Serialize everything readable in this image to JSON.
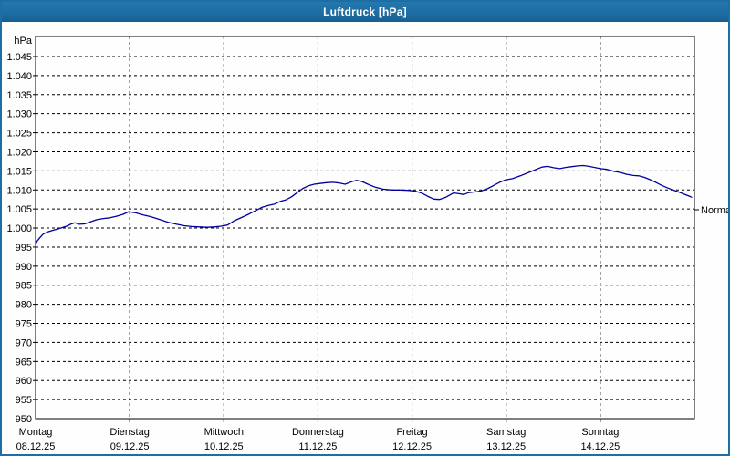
{
  "window": {
    "title": "Luftdruck [hPa]"
  },
  "colors": {
    "titlebar": "#1d6ea5",
    "window_border": "#1d6ea5",
    "background": "#fdfefd",
    "plot_border": "#000000",
    "gridline": "#000000",
    "curve": "#0000a0",
    "axis_text": "#000000",
    "normal_text": "#222222"
  },
  "chart_data": {
    "type": "line",
    "title": "Luftdruck [hPa]",
    "y_unit_label": "hPa",
    "ylim": [
      950,
      1050.3
    ],
    "x_range_days": [
      0,
      7
    ],
    "grid": "dashed",
    "legend": "none",
    "y_ticks": [
      {
        "value": 1045,
        "label": "1.045"
      },
      {
        "value": 1040,
        "label": "1.040"
      },
      {
        "value": 1035,
        "label": "1.035"
      },
      {
        "value": 1030,
        "label": "1.030"
      },
      {
        "value": 1025,
        "label": "1.025"
      },
      {
        "value": 1020,
        "label": "1.020"
      },
      {
        "value": 1015,
        "label": "1.015"
      },
      {
        "value": 1010,
        "label": "1.010"
      },
      {
        "value": 1005,
        "label": "1.005"
      },
      {
        "value": 1000,
        "label": "1.000"
      },
      {
        "value": 995,
        "label": "995"
      },
      {
        "value": 990,
        "label": "990"
      },
      {
        "value": 985,
        "label": "985"
      },
      {
        "value": 980,
        "label": "980"
      },
      {
        "value": 975,
        "label": "975"
      },
      {
        "value": 970,
        "label": "970"
      },
      {
        "value": 965,
        "label": "965"
      },
      {
        "value": 960,
        "label": "960"
      },
      {
        "value": 955,
        "label": "955"
      },
      {
        "value": 950,
        "label": "950"
      }
    ],
    "x_days": [
      {
        "name": "Montag",
        "date": "08.12.25"
      },
      {
        "name": "Dienstag",
        "date": "09.12.25"
      },
      {
        "name": "Mittwoch",
        "date": "10.12.25"
      },
      {
        "name": "Donnerstag",
        "date": "11.12.25"
      },
      {
        "name": "Freitag",
        "date": "12.12.25"
      },
      {
        "name": "Samstag",
        "date": "13.12.25"
      },
      {
        "name": "Sonntag",
        "date": "14.12.25"
      }
    ],
    "annotation": {
      "label": "Normal",
      "value": 1004.8
    },
    "series": [
      {
        "name": "Luftdruck",
        "color": "#0000a0",
        "points": [
          [
            0.0,
            995.8
          ],
          [
            0.02,
            996.7
          ],
          [
            0.05,
            997.6
          ],
          [
            0.08,
            998.4
          ],
          [
            0.13,
            999.0
          ],
          [
            0.18,
            999.4
          ],
          [
            0.23,
            999.7
          ],
          [
            0.28,
            1000.1
          ],
          [
            0.33,
            1000.5
          ],
          [
            0.38,
            1001.1
          ],
          [
            0.42,
            1001.4
          ],
          [
            0.46,
            1001.0
          ],
          [
            0.52,
            1001.1
          ],
          [
            0.58,
            1001.6
          ],
          [
            0.65,
            1002.2
          ],
          [
            0.72,
            1002.5
          ],
          [
            0.79,
            1002.7
          ],
          [
            0.86,
            1003.1
          ],
          [
            0.93,
            1003.6
          ],
          [
            0.99,
            1004.3
          ],
          [
            1.06,
            1004.0
          ],
          [
            1.13,
            1003.5
          ],
          [
            1.22,
            1003.0
          ],
          [
            1.31,
            1002.3
          ],
          [
            1.41,
            1001.5
          ],
          [
            1.5,
            1001.0
          ],
          [
            1.58,
            1000.6
          ],
          [
            1.66,
            1000.4
          ],
          [
            1.74,
            1000.3
          ],
          [
            1.82,
            1000.2
          ],
          [
            1.9,
            1000.3
          ],
          [
            1.97,
            1000.5
          ],
          [
            2.04,
            1000.8
          ],
          [
            2.11,
            1001.9
          ],
          [
            2.19,
            1002.8
          ],
          [
            2.27,
            1003.7
          ],
          [
            2.34,
            1004.6
          ],
          [
            2.41,
            1005.5
          ],
          [
            2.47,
            1005.9
          ],
          [
            2.54,
            1006.3
          ],
          [
            2.6,
            1007.0
          ],
          [
            2.66,
            1007.4
          ],
          [
            2.72,
            1008.2
          ],
          [
            2.78,
            1009.3
          ],
          [
            2.84,
            1010.4
          ],
          [
            2.9,
            1011.1
          ],
          [
            2.96,
            1011.5
          ],
          [
            3.02,
            1011.7
          ],
          [
            3.09,
            1011.9
          ],
          [
            3.16,
            1012.0
          ],
          [
            3.23,
            1011.8
          ],
          [
            3.29,
            1011.5
          ],
          [
            3.36,
            1012.2
          ],
          [
            3.41,
            1012.5
          ],
          [
            3.47,
            1012.2
          ],
          [
            3.53,
            1011.5
          ],
          [
            3.61,
            1010.7
          ],
          [
            3.69,
            1010.2
          ],
          [
            3.78,
            1010.0
          ],
          [
            3.87,
            1010.0
          ],
          [
            3.96,
            1009.9
          ],
          [
            4.03,
            1009.7
          ],
          [
            4.1,
            1009.2
          ],
          [
            4.17,
            1008.3
          ],
          [
            4.23,
            1007.6
          ],
          [
            4.29,
            1007.5
          ],
          [
            4.36,
            1008.1
          ],
          [
            4.44,
            1009.2
          ],
          [
            4.5,
            1009.0
          ],
          [
            4.55,
            1008.8
          ],
          [
            4.6,
            1009.3
          ],
          [
            4.67,
            1009.5
          ],
          [
            4.73,
            1009.7
          ],
          [
            4.8,
            1010.3
          ],
          [
            4.87,
            1011.2
          ],
          [
            4.93,
            1012.0
          ],
          [
            4.99,
            1012.6
          ],
          [
            5.07,
            1013.0
          ],
          [
            5.15,
            1013.7
          ],
          [
            5.23,
            1014.5
          ],
          [
            5.31,
            1015.3
          ],
          [
            5.38,
            1016.0
          ],
          [
            5.44,
            1016.2
          ],
          [
            5.51,
            1015.8
          ],
          [
            5.57,
            1015.6
          ],
          [
            5.63,
            1015.9
          ],
          [
            5.69,
            1016.1
          ],
          [
            5.76,
            1016.3
          ],
          [
            5.82,
            1016.4
          ],
          [
            5.88,
            1016.2
          ],
          [
            5.94,
            1015.9
          ],
          [
            6.0,
            1015.6
          ],
          [
            6.07,
            1015.4
          ],
          [
            6.14,
            1014.9
          ],
          [
            6.21,
            1014.6
          ],
          [
            6.28,
            1014.1
          ],
          [
            6.35,
            1013.8
          ],
          [
            6.41,
            1013.7
          ],
          [
            6.47,
            1013.3
          ],
          [
            6.53,
            1012.7
          ],
          [
            6.59,
            1012.0
          ],
          [
            6.65,
            1011.2
          ],
          [
            6.71,
            1010.6
          ],
          [
            6.77,
            1010.0
          ],
          [
            6.83,
            1009.5
          ],
          [
            6.89,
            1008.9
          ],
          [
            6.94,
            1008.4
          ],
          [
            6.97,
            1008.1
          ]
        ]
      }
    ]
  }
}
